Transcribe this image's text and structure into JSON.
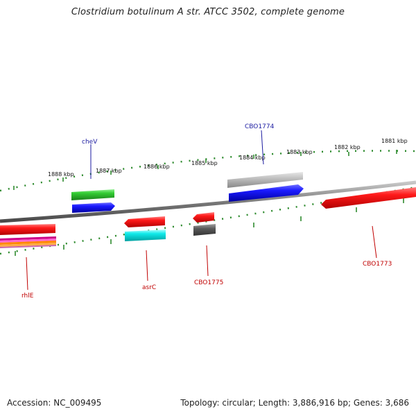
{
  "title": "Clostridium botulinum A str. ATCC 3502, complete genome",
  "footer": {
    "accession": "Accession: NC_009495",
    "summary": "Topology: circular; Length: 3,886,916 bp; Genes: 3,686"
  },
  "scale_labels": [
    "1888 kbp",
    "1887 kbp",
    "1886 kbp",
    "1885 kbp",
    "1884 kbp",
    "1883 kbp",
    "1882 kbp",
    "1881 kbp"
  ],
  "gene_labels": {
    "cheV": "cheV",
    "CBO1774": "CBO1774",
    "rhlE": "rhlE",
    "asrC": "asrC",
    "CBO1775": "CBO1775",
    "CBO1773": "CBO1773"
  },
  "colors": {
    "backbone": "#8a8a8a",
    "tick": "#2e8b2e",
    "forward_label": "#1a1aa0",
    "reverse_label": "#c00000",
    "red": "#ee1111",
    "blue": "#1111ee",
    "green": "#33cc33",
    "cyan": "#11e6e6",
    "gray_light": "#bbbbbb",
    "gray_dark": "#555555"
  }
}
